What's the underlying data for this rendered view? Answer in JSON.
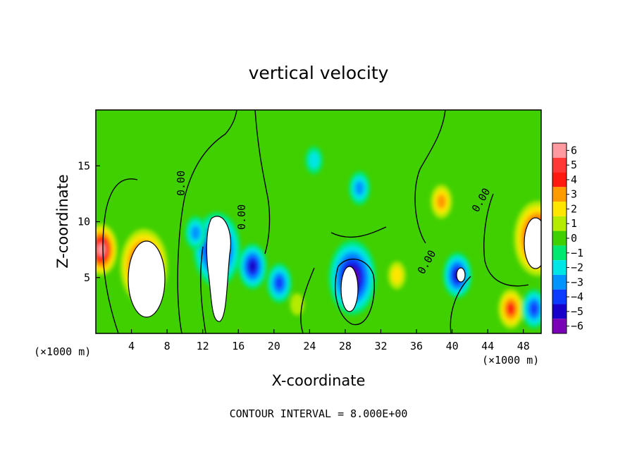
{
  "chart_data": {
    "type": "heatmap",
    "title": "vertical velocity",
    "xlabel": "X-coordinate",
    "ylabel": "Z-coordinate",
    "x_unit": "(×1000 m)",
    "y_unit": "",
    "xlim": [
      0,
      50
    ],
    "ylim": [
      0,
      20
    ],
    "x_ticks": [
      4,
      8,
      12,
      16,
      20,
      24,
      28,
      32,
      36,
      40,
      44,
      48
    ],
    "y_ticks": [
      5,
      10,
      15
    ],
    "colorbar": {
      "levels": [
        6,
        5,
        4,
        3,
        2,
        1,
        0,
        -1,
        -2,
        -3,
        -4,
        -5,
        -6
      ],
      "labels": [
        "6",
        "5",
        "4",
        "3",
        "2",
        "1",
        "0",
        "−1",
        "−2",
        "−3",
        "−4",
        "−5",
        "−6"
      ]
    },
    "contour_label": "0.00",
    "contour_interval_text": "CONTOUR INTERVAL = 8.000E+00",
    "features": [
      {
        "x": 5.4,
        "z": 6.0,
        "w": 10
      },
      {
        "x": 0.6,
        "z": 7.5,
        "w": 6
      },
      {
        "x": 49.6,
        "z": 8.5,
        "w": 10
      },
      {
        "x": 46.6,
        "z": 2.2,
        "w": 4
      },
      {
        "x": 38.8,
        "z": 11.8,
        "w": 3
      },
      {
        "x": 33.8,
        "z": 5.2,
        "w": 2
      },
      {
        "x": 22.6,
        "z": 2.6,
        "w": 1
      },
      {
        "x": 13.6,
        "z": 7.5,
        "w": -10
      },
      {
        "x": 28.8,
        "z": 5.0,
        "w": -10
      },
      {
        "x": 17.6,
        "z": 6.0,
        "w": -5
      },
      {
        "x": 20.6,
        "z": 4.5,
        "w": -4
      },
      {
        "x": 29.6,
        "z": 13.0,
        "w": -3
      },
      {
        "x": 40.6,
        "z": 5.2,
        "w": -5
      },
      {
        "x": 49.2,
        "z": 2.2,
        "w": -4
      },
      {
        "x": 24.5,
        "z": 15.5,
        "w": -2
      },
      {
        "x": 11.2,
        "z": 9.0,
        "w": -3
      }
    ]
  },
  "colors": {
    "colorbar": [
      "#ff9aa0",
      "#ff3a36",
      "#ff1a10",
      "#ff9a00",
      "#ffe600",
      "#b4eb00",
      "#40d000",
      "#00e870",
      "#00e6e6",
      "#0094ff",
      "#0a3cff",
      "#1800c8",
      "#7a00b8"
    ]
  }
}
